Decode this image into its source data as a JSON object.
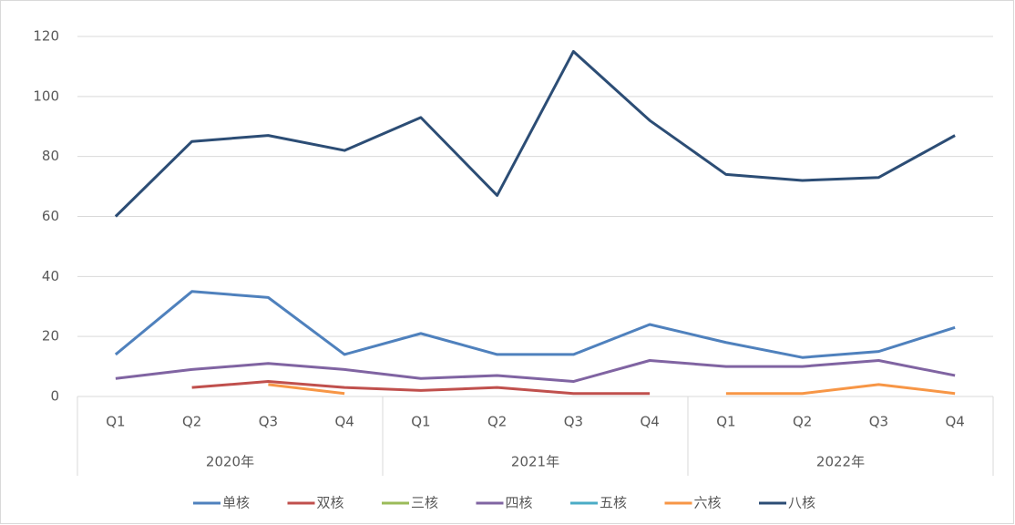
{
  "chart_data": {
    "type": "line",
    "categories": [
      "Q1",
      "Q2",
      "Q3",
      "Q4",
      "Q1",
      "Q2",
      "Q3",
      "Q4",
      "Q1",
      "Q2",
      "Q3",
      "Q4"
    ],
    "category_groups": [
      "2020年",
      "2021年",
      "2022年"
    ],
    "series": [
      {
        "name": "单核",
        "color": "#4f81bd",
        "values": [
          14,
          35,
          33,
          14,
          21,
          14,
          14,
          24,
          18,
          13,
          15,
          23
        ]
      },
      {
        "name": "双核",
        "color": "#c0504d",
        "values": [
          null,
          3,
          5,
          3,
          2,
          3,
          1,
          1,
          null,
          null,
          null,
          null
        ]
      },
      {
        "name": "三核",
        "color": "#9bbb59",
        "values": [
          null,
          null,
          null,
          null,
          null,
          null,
          null,
          null,
          null,
          null,
          null,
          null
        ]
      },
      {
        "name": "四核",
        "color": "#8064a2",
        "values": [
          6,
          9,
          11,
          9,
          6,
          7,
          5,
          12,
          10,
          10,
          12,
          7
        ]
      },
      {
        "name": "五核",
        "color": "#4bacc6",
        "values": [
          null,
          null,
          null,
          null,
          null,
          null,
          null,
          null,
          null,
          null,
          null,
          null
        ]
      },
      {
        "name": "六核",
        "color": "#f79646",
        "values": [
          null,
          null,
          4,
          1,
          null,
          null,
          null,
          null,
          1,
          1,
          4,
          1
        ]
      },
      {
        "name": "八核",
        "color": "#2c4d75",
        "values": [
          60,
          85,
          87,
          82,
          93,
          67,
          115,
          92,
          74,
          72,
          73,
          87
        ]
      }
    ],
    "ylim": [
      0,
      120
    ],
    "yticks": [
      0,
      20,
      40,
      60,
      80,
      100,
      120
    ],
    "grid": true,
    "legend": "bottom"
  }
}
